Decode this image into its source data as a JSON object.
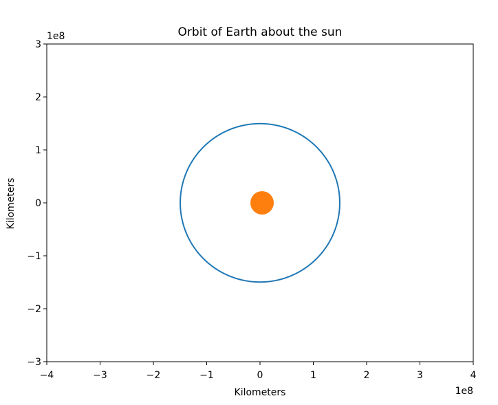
{
  "chart_data": {
    "type": "line",
    "title": "Orbit of Earth about the sun",
    "xlabel": "Kilometers",
    "ylabel": "Kilometers",
    "xlim": [
      -400000000,
      400000000
    ],
    "ylim": [
      -300000000,
      300000000
    ],
    "xticks": [
      -4,
      -3,
      -2,
      -1,
      0,
      1,
      2,
      3,
      4
    ],
    "xtick_labels": [
      "−4",
      "−3",
      "−2",
      "−1",
      "0",
      "1",
      "2",
      "3",
      "4"
    ],
    "yticks": [
      -3,
      -2,
      -1,
      0,
      1,
      2,
      3
    ],
    "ytick_labels": [
      "−3",
      "−2",
      "−1",
      "0",
      "1",
      "2",
      "3"
    ],
    "x_offset_label": "1e8",
    "y_offset_label": "1e8",
    "grid": false,
    "series": [
      {
        "name": "Earth orbit",
        "kind": "circle-line",
        "color": "#1f77b4",
        "center": [
          0,
          0
        ],
        "radius_km": 149600000
      },
      {
        "name": "Sun",
        "kind": "marker",
        "color": "#ff7f0e",
        "x": 0,
        "y": 0
      }
    ]
  }
}
